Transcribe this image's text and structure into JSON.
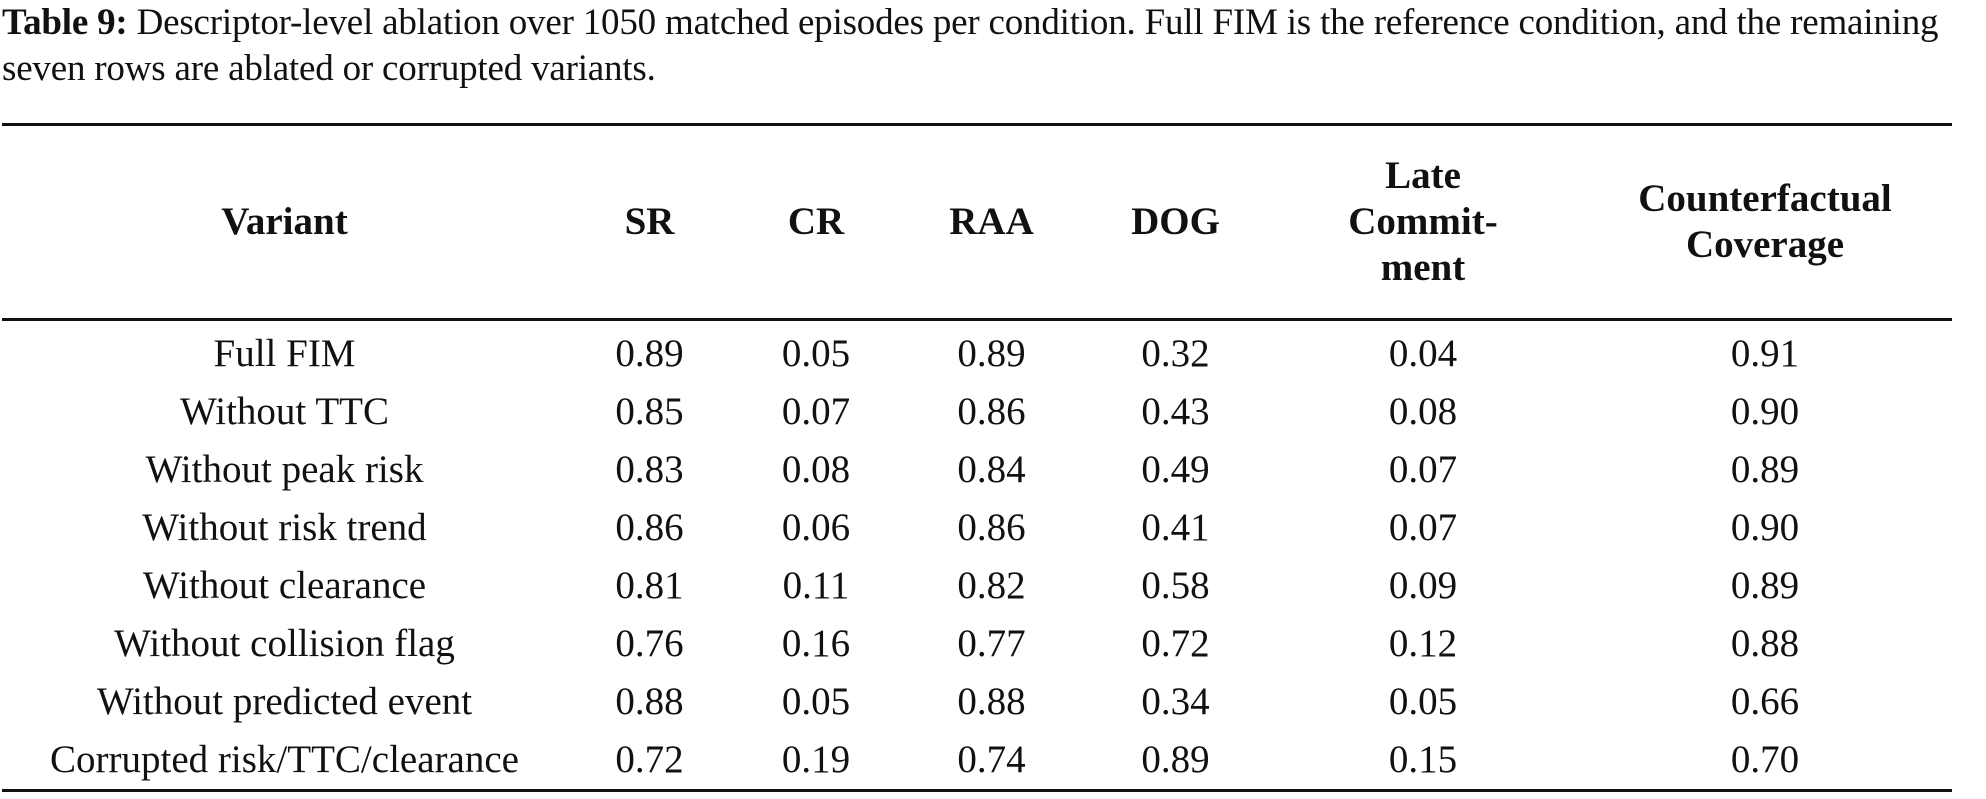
{
  "caption": {
    "label": "Table 9:",
    "text": "Descriptor-level ablation over 1050 matched episodes per condition. Full FIM is the reference condition, and the remaining seven rows are ablated or corrupted variants."
  },
  "table": {
    "headers": [
      "Variant",
      "SR",
      "CR",
      "RAA",
      "DOG",
      "Late Commit-ment",
      "Counterfactual Coverage"
    ],
    "header_lines": {
      "late": [
        "Late",
        "Commit-",
        "ment"
      ],
      "cc": [
        "Counterfactual",
        "Coverage"
      ]
    },
    "rows": [
      {
        "variant": "Full FIM",
        "sr": "0.89",
        "cr": "0.05",
        "raa": "0.89",
        "dog": "0.32",
        "late": "0.04",
        "cc": "0.91"
      },
      {
        "variant": "Without TTC",
        "sr": "0.85",
        "cr": "0.07",
        "raa": "0.86",
        "dog": "0.43",
        "late": "0.08",
        "cc": "0.90"
      },
      {
        "variant": "Without peak risk",
        "sr": "0.83",
        "cr": "0.08",
        "raa": "0.84",
        "dog": "0.49",
        "late": "0.07",
        "cc": "0.89"
      },
      {
        "variant": "Without risk trend",
        "sr": "0.86",
        "cr": "0.06",
        "raa": "0.86",
        "dog": "0.41",
        "late": "0.07",
        "cc": "0.90"
      },
      {
        "variant": "Without clearance",
        "sr": "0.81",
        "cr": "0.11",
        "raa": "0.82",
        "dog": "0.58",
        "late": "0.09",
        "cc": "0.89"
      },
      {
        "variant": "Without collision flag",
        "sr": "0.76",
        "cr": "0.16",
        "raa": "0.77",
        "dog": "0.72",
        "late": "0.12",
        "cc": "0.88"
      },
      {
        "variant": "Without predicted event",
        "sr": "0.88",
        "cr": "0.05",
        "raa": "0.88",
        "dog": "0.34",
        "late": "0.05",
        "cc": "0.66"
      },
      {
        "variant": "Corrupted risk/TTC/clearance",
        "sr": "0.72",
        "cr": "0.19",
        "raa": "0.74",
        "dog": "0.89",
        "late": "0.15",
        "cc": "0.70"
      }
    ]
  }
}
